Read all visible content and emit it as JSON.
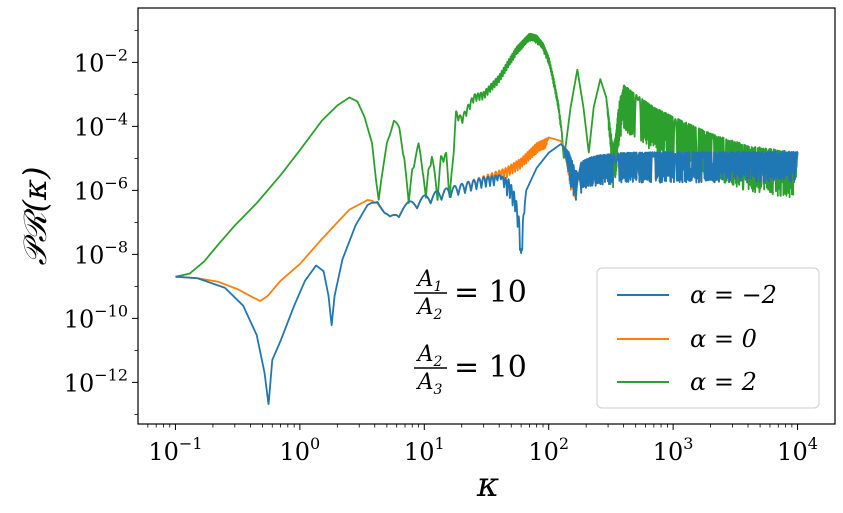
{
  "chart_data": {
    "type": "line",
    "xlabel": "κ",
    "ylabel": "𝒫ℛ(κ)",
    "x_scale": "log",
    "y_scale": "log",
    "xlim": [
      0.05,
      20000
    ],
    "ylim": [
      5e-14,
      0.5
    ],
    "x_ticks": [
      {
        "value": 0.1,
        "base": "10",
        "exp": "−1"
      },
      {
        "value": 1,
        "base": "10",
        "exp": "0"
      },
      {
        "value": 10,
        "base": "10",
        "exp": "1"
      },
      {
        "value": 100,
        "base": "10",
        "exp": "2"
      },
      {
        "value": 1000,
        "base": "10",
        "exp": "3"
      },
      {
        "value": 10000,
        "base": "10",
        "exp": "4"
      }
    ],
    "y_ticks": [
      {
        "value": 1e-12,
        "base": "10",
        "exp": "−12"
      },
      {
        "value": 1e-10,
        "base": "10",
        "exp": "−10"
      },
      {
        "value": 1e-08,
        "base": "10",
        "exp": "−8"
      },
      {
        "value": 1e-06,
        "base": "10",
        "exp": "−6"
      },
      {
        "value": 0.0001,
        "base": "10",
        "exp": "−4"
      },
      {
        "value": 0.01,
        "base": "10",
        "exp": "−2"
      }
    ],
    "legend_position": "bottom-right",
    "annotations": [
      {
        "num": "A",
        "num_sub": "1",
        "den": "A",
        "den_sub": "2",
        "rhs": "= 10"
      },
      {
        "num": "A",
        "num_sub": "2",
        "den": "A",
        "den_sub": "3",
        "rhs": "= 10"
      }
    ],
    "series": [
      {
        "name": "α = −2",
        "color": "#1f77b4",
        "points": [
          [
            0.1,
            2e-09
          ],
          [
            0.15,
            1.8e-09
          ],
          [
            0.25,
            9e-10
          ],
          [
            0.35,
            2.5e-10
          ],
          [
            0.45,
            3e-11
          ],
          [
            0.52,
            2e-12
          ],
          [
            0.56,
            2e-13
          ],
          [
            0.6,
            5e-12
          ],
          [
            0.7,
            2e-11
          ],
          [
            0.9,
            2.5e-10
          ],
          [
            1.1,
            1.5e-09
          ],
          [
            1.35,
            4.5e-09
          ],
          [
            1.55,
            3e-09
          ],
          [
            1.7,
            5e-10
          ],
          [
            1.8,
            6e-11
          ],
          [
            1.9,
            5e-10
          ],
          [
            2.2,
            7e-09
          ],
          [
            2.8,
            8e-08
          ],
          [
            3.5,
            3.5e-07
          ],
          [
            4.2,
            5e-07
          ],
          [
            4.8,
            2e-07
          ],
          [
            5.3,
            1.6e-07
          ],
          [
            6,
            2.8e-07
          ],
          [
            8,
            5e-07
          ],
          [
            12,
            9e-07
          ],
          [
            20,
            1.6e-06
          ],
          [
            30,
            2.6e-06
          ],
          [
            40,
            3e-06
          ],
          [
            48,
            2.2e-06
          ],
          [
            54,
            7e-07
          ],
          [
            58,
            1.2e-07
          ],
          [
            60,
            1e-08
          ],
          [
            62,
            1.2e-07
          ],
          [
            66,
            1e-06
          ],
          [
            80,
            5e-06
          ],
          [
            100,
            1.5e-05
          ],
          [
            125,
            2.8e-05
          ],
          [
            145,
            1.6e-05
          ],
          [
            165,
            4e-06
          ],
          [
            185,
            8e-06
          ],
          [
            230,
            1.2e-05
          ],
          [
            400,
            1.5e-05
          ],
          [
            1000,
            1.6e-05
          ],
          [
            10000,
            1.6e-05
          ]
        ],
        "oscillations": [
          [
            3.8,
            40,
            0.2,
            5
          ],
          [
            40,
            65,
            0.35,
            5
          ],
          [
            130,
            10000,
            0.6,
            2
          ]
        ]
      },
      {
        "name": "α = 0",
        "color": "#ff7f0e",
        "points": [
          [
            0.1,
            2e-09
          ],
          [
            0.15,
            1.8e-09
          ],
          [
            0.22,
            1.4e-09
          ],
          [
            0.32,
            8e-10
          ],
          [
            0.42,
            4.5e-10
          ],
          [
            0.48,
            3.5e-10
          ],
          [
            0.55,
            5e-10
          ],
          [
            0.7,
            1.5e-09
          ],
          [
            1,
            5e-09
          ],
          [
            1.5,
            3e-08
          ],
          [
            2.5,
            2.5e-07
          ],
          [
            3.5,
            5e-07
          ],
          [
            4.2,
            4.5e-07
          ],
          [
            4.8,
            2e-07
          ],
          [
            5.3,
            1.6e-07
          ],
          [
            6,
            2.8e-07
          ],
          [
            8,
            5e-07
          ],
          [
            12,
            9e-07
          ],
          [
            20,
            1.6e-06
          ],
          [
            30,
            2.8e-06
          ],
          [
            45,
            5e-06
          ],
          [
            60,
            1e-05
          ],
          [
            80,
            3e-05
          ],
          [
            100,
            4.5e-05
          ],
          [
            125,
            3.5e-05
          ],
          [
            145,
            1.2e-05
          ],
          [
            165,
            4e-06
          ],
          [
            185,
            8e-06
          ],
          [
            230,
            1.2e-05
          ],
          [
            400,
            1.5e-05
          ],
          [
            1000,
            1.6e-05
          ],
          [
            10000,
            1.6e-05
          ]
        ],
        "oscillations": [
          [
            3.8,
            100,
            0.2,
            5
          ],
          [
            130,
            10000,
            0.6,
            2
          ]
        ]
      },
      {
        "name": "α = 2",
        "color": "#2ca02c",
        "points": [
          [
            0.1,
            2e-09
          ],
          [
            0.13,
            2.5e-09
          ],
          [
            0.17,
            6e-09
          ],
          [
            0.22,
            2e-08
          ],
          [
            0.3,
            8e-08
          ],
          [
            0.45,
            4e-07
          ],
          [
            0.7,
            3e-06
          ],
          [
            1,
            1.8e-05
          ],
          [
            1.5,
            0.00015
          ],
          [
            2,
            0.00045
          ],
          [
            2.5,
            0.0008
          ],
          [
            2.9,
            0.0006
          ],
          [
            3.3,
            0.0002
          ],
          [
            3.8,
            3e-05
          ],
          [
            4.1,
            2e-06
          ],
          [
            4.3,
            5e-07
          ],
          [
            4.5,
            2e-06
          ],
          [
            5,
            3e-05
          ],
          [
            5.7,
            0.00016
          ],
          [
            6.3,
            0.0001
          ],
          [
            6.9,
            1.5e-05
          ],
          [
            7.5,
            4e-07
          ],
          [
            8,
            6e-06
          ],
          [
            9,
            3e-05
          ],
          [
            9.8,
            5e-06
          ],
          [
            10.3,
            6e-07
          ],
          [
            10.8,
            5e-06
          ],
          [
            11.5,
            1.5e-05
          ],
          [
            12.2,
            3e-06
          ],
          [
            12.8,
            8e-07
          ],
          [
            13.6,
            1.2e-05
          ],
          [
            15,
            1.5e-05
          ],
          [
            16,
            8e-07
          ],
          [
            16.8,
            6e-06
          ],
          [
            18,
            0.0003
          ],
          [
            20,
            0.0002
          ],
          [
            25,
            0.001
          ],
          [
            30,
            0.0012
          ],
          [
            40,
            0.004
          ],
          [
            55,
            0.03
          ],
          [
            70,
            0.08
          ],
          [
            80,
            0.07
          ],
          [
            90,
            0.04
          ],
          [
            100,
            0.015
          ],
          [
            110,
            0.003
          ],
          [
            120,
            0.0005
          ],
          [
            127,
            8e-05
          ],
          [
            132,
            1e-05
          ],
          [
            136,
            2e-05
          ],
          [
            150,
            0.0004
          ],
          [
            170,
            0.006
          ],
          [
            190,
            0.0004
          ],
          [
            210,
            1.5e-05
          ],
          [
            230,
            0.0004
          ],
          [
            260,
            0.003
          ],
          [
            290,
            0.0008
          ],
          [
            330,
            2e-05
          ],
          [
            370,
            0.0006
          ],
          [
            400,
            0.002
          ],
          [
            500,
            0.001
          ],
          [
            700,
            0.0004
          ],
          [
            1000,
            0.0002
          ],
          [
            2000,
            6e-05
          ],
          [
            4000,
            2.5e-05
          ],
          [
            10000,
            1.5e-05
          ]
        ],
        "oscillations": [
          [
            5,
            130,
            0.15,
            3
          ],
          [
            290,
            10000,
            0.9,
            3
          ]
        ]
      }
    ]
  }
}
